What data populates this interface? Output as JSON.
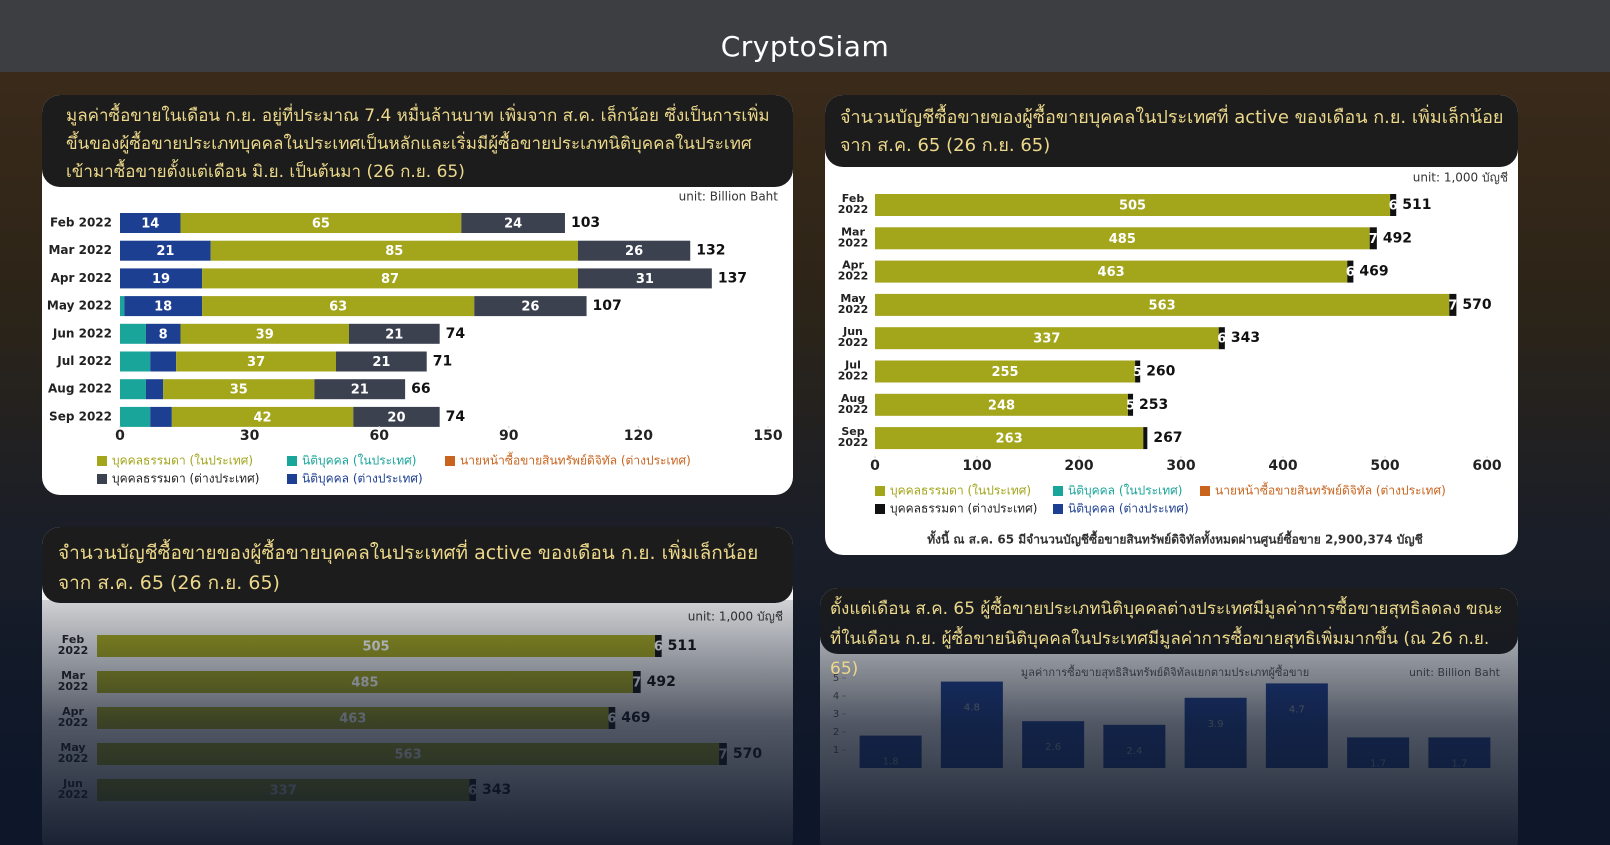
{
  "header": {
    "brand": "CryptoSiam"
  },
  "chart_data": [
    {
      "type": "bar",
      "horizontal": true,
      "stacked": true,
      "title": "มูลค่าซื้อขายในเดือน ก.ย. อยู่ที่ประมาณ 7.4 หมื่นล้านบาท เพิ่มจาก ส.ค. เล็กน้อย ซึ่งเป็นการเพิ่มขึ้นของผู้ซื้อขายประเภทบุคคลในประเทศเป็นหลักและเริ่มมีผู้ซื้อขายประเภทนิติบุคคลในประเทศเข้ามาซื้อขายตั้งแต่เดือน มิ.ย. เป็นต้นมา (26 ก.ย. 65)",
      "unit": "unit:  Billion Baht",
      "categories": [
        "Feb 2022",
        "Mar 2022",
        "Apr 2022",
        "May 2022",
        "Jun 2022",
        "Jul 2022",
        "Aug 2022",
        "Sep 2022"
      ],
      "series": [
        {
          "name": "นิติบุคคล (ในประเทศ)",
          "color": "#1aa59a",
          "values": [
            0,
            0,
            0,
            1,
            6,
            7,
            6,
            7
          ],
          "value_labels": [
            null,
            null,
            null,
            null,
            null,
            null,
            null,
            null
          ]
        },
        {
          "name": "นิติบุคคล (ต่างประเทศ)",
          "color": "#1d3f91",
          "values": [
            14,
            21,
            19,
            18,
            8,
            6,
            4,
            5
          ],
          "value_labels": [
            "14",
            "21",
            "19",
            "18",
            "8",
            null,
            null,
            null
          ]
        },
        {
          "name": "บุคคลธรรมดา (ในประเทศ)",
          "color": "#a3a51b",
          "values": [
            65,
            85,
            87,
            63,
            39,
            37,
            35,
            42
          ]
        },
        {
          "name": "บุคคลธรรมดา (ต่างประเทศ)",
          "color": "#3c4150",
          "values": [
            24,
            26,
            31,
            26,
            21,
            21,
            21,
            20
          ]
        },
        {
          "name": "นายหน้าซื้อขายสินทรัพย์ดิจิทัล (ต่างประเทศ)",
          "color": "#c8641e",
          "values": [
            0,
            0,
            0,
            0,
            0,
            0,
            0,
            0
          ],
          "value_labels": [
            null,
            null,
            null,
            null,
            null,
            null,
            null,
            null
          ]
        }
      ],
      "totals": [
        103,
        132,
        137,
        107,
        74,
        71,
        66,
        74
      ],
      "xlim": [
        0,
        150
      ],
      "xticks": [
        0,
        30,
        60,
        90,
        120,
        150
      ]
    },
    {
      "type": "bar",
      "horizontal": true,
      "stacked": true,
      "title": "จำนวนบัญชีซื้อขายของผู้ซื้อขายบุคคลในประเทศที่ active ของเดือน ก.ย. เพิ่มเล็กน้อยจาก ส.ค. 65 (26 ก.ย. 65)",
      "unit": "unit: 1,000 บัญชี",
      "categories": [
        "Feb 2022",
        "Mar 2022",
        "Apr 2022",
        "May 2022",
        "Jun 2022",
        "Jul 2022",
        "Aug 2022",
        "Sep 2022"
      ],
      "series": [
        {
          "name": "บุคคลธรรมดา (ในประเทศ)",
          "color": "#a3a51b",
          "values": [
            505,
            485,
            463,
            563,
            337,
            255,
            248,
            263
          ]
        },
        {
          "name": "บุคคลธรรมดา (ต่างประเทศ)",
          "color": "#111111",
          "values": [
            6,
            7,
            6,
            7,
            6,
            5,
            5,
            4
          ],
          "value_labels": [
            "6",
            "7",
            "6",
            "7",
            "6",
            "5",
            "5",
            null
          ]
        },
        {
          "name": "นิติบุคคล (ในประเทศ)",
          "color": "#1aa59a",
          "values": [
            0,
            0,
            0,
            0,
            0,
            0,
            0,
            0
          ],
          "value_labels": [
            null,
            null,
            null,
            null,
            null,
            null,
            null,
            null
          ]
        },
        {
          "name": "นายหน้าซื้อขายสินทรัพย์ดิจิทัล (ต่างประเทศ)",
          "color": "#c8641e",
          "values": [
            0,
            0,
            0,
            0,
            0,
            0,
            0,
            0
          ],
          "value_labels": [
            null,
            null,
            null,
            null,
            null,
            null,
            null,
            null
          ]
        },
        {
          "name": "นิติบุคคล (ต่างประเทศ)",
          "color": "#1d3f91",
          "values": [
            0,
            0,
            0,
            0,
            0,
            0,
            0,
            0
          ],
          "value_labels": [
            null,
            null,
            null,
            null,
            null,
            null,
            null,
            null
          ]
        }
      ],
      "totals": [
        511,
        492,
        469,
        570,
        343,
        260,
        253,
        267
      ],
      "xlim": [
        0,
        600
      ],
      "xticks": [
        0,
        100,
        200,
        300,
        400,
        500,
        600
      ],
      "note": "ทั้งนี้ ณ ส.ค. 65 มีจำนวนบัญชีซื้อขายสินทรัพย์ดิจิทัลทั้งหมดผ่านศูนย์ซื้อขาย  2,900,374  บัญชี"
    },
    {
      "type": "bar",
      "horizontal": true,
      "stacked": true,
      "title": "จำนวนบัญชีซื้อขายของผู้ซื้อขายบุคคลในประเทศที่ active ของเดือน ก.ย. เพิ่มเล็กน้อยจาก ส.ค. 65 (26 ก.ย. 65)",
      "unit": "unit: 1,000 บัญชี",
      "categories": [
        "Feb 2022",
        "Mar 2022",
        "Apr 2022",
        "May 2022",
        "Jun 2022"
      ],
      "series": [
        {
          "color": "#a3a51b",
          "values": [
            505,
            485,
            463,
            563,
            337
          ]
        },
        {
          "color": "#111111",
          "values": [
            6,
            7,
            6,
            7,
            6
          ]
        }
      ],
      "totals": [
        511,
        492,
        469,
        570,
        343
      ],
      "xlim": [
        0,
        600
      ]
    },
    {
      "type": "bar",
      "horizontal": false,
      "title": "ตั้งแต่เดือน ส.ค. 65 ผู้ซื้อขายประเภทนิติบุคคลต่างประเทศมีมูลค่าการซื้อขายสุทธิลดลง ขณะที่ในเดือน ก.ย. ผู้ซื้อขายนิติบุคคลในประเทศมีมูลค่าการซื้อขายสุทธิเพิ่มมากขึ้น (ณ 26 ก.ย. 65)",
      "subtitle": "มูลค่าการซื้อขายสุทธิสินทรัพย์ดิจิทัลแยกตามประเภทผู้ซื้อขาย",
      "unit": "unit: Billion Baht",
      "categories": [
        null,
        null,
        null,
        null,
        null,
        null,
        null,
        null
      ],
      "values": [
        1.8,
        4.8,
        2.6,
        2.4,
        3.9,
        4.7,
        1.7,
        1.7
      ],
      "color": "#1d3f91",
      "ylim": [
        0,
        5
      ],
      "yticks": [
        1,
        2,
        3,
        4,
        5
      ]
    }
  ]
}
